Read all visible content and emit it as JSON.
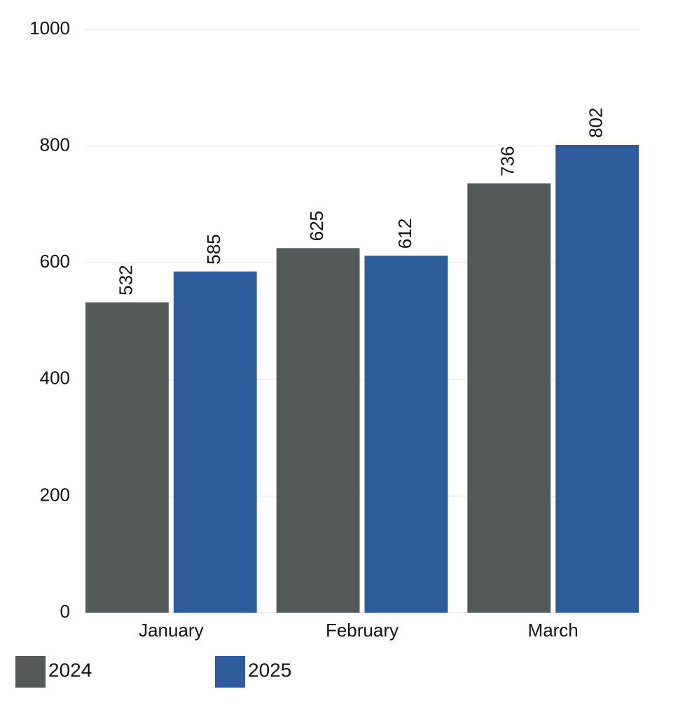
{
  "chart_data": {
    "type": "bar",
    "categories": [
      "January",
      "February",
      "March"
    ],
    "series": [
      {
        "name": "2024",
        "color": "#545a59",
        "values": [
          532,
          625,
          736
        ]
      },
      {
        "name": "2025",
        "color": "#2e5b9b",
        "values": [
          585,
          612,
          802
        ]
      }
    ],
    "ylim": [
      0,
      1000
    ],
    "yticks": [
      0,
      200,
      400,
      600,
      800,
      1000
    ],
    "grid": true,
    "legend": "bottom-left"
  }
}
